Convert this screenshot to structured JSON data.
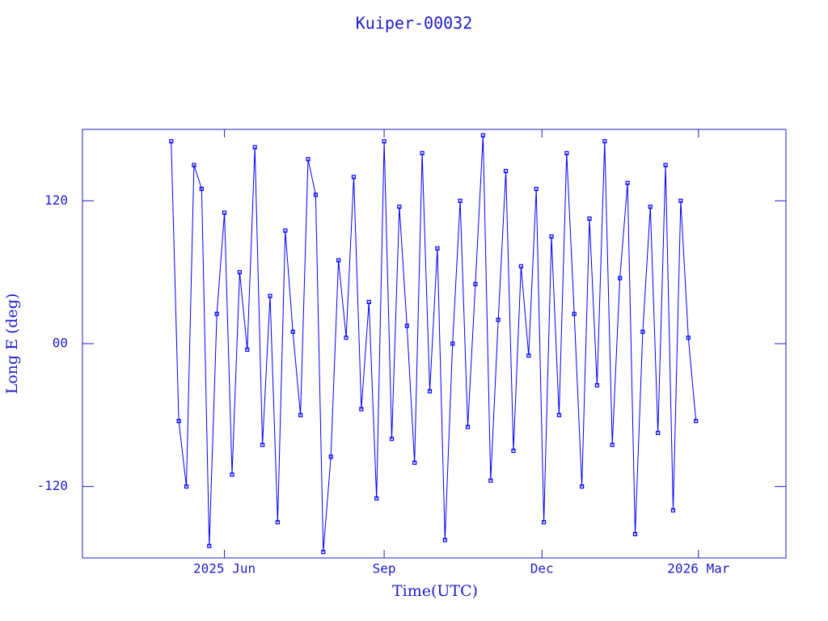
{
  "chart_data": {
    "type": "line",
    "title": "Kuiper-00032",
    "x_label": "Time(UTC)",
    "y_label": "Long E (deg)",
    "xlim": [
      2025.19,
      2026.3
    ],
    "ylim": [
      -180,
      180
    ],
    "xticks": [
      {
        "value": 2025.414,
        "label": "2025 Jun"
      },
      {
        "value": 2025.666,
        "label": "Sep"
      },
      {
        "value": 2025.915,
        "label": "Dec"
      },
      {
        "value": 2026.162,
        "label": "2026 Mar"
      }
    ],
    "yticks": [
      -120,
      {
        "value": 0,
        "label": "00"
      },
      120
    ],
    "series": [
      {
        "name": "Long E",
        "color": "#0000ff",
        "x": [
          2025.33,
          2025.342,
          2025.354,
          2025.366,
          2025.378,
          2025.39,
          2025.402,
          2025.414,
          2025.426,
          2025.438,
          2025.45,
          2025.462,
          2025.474,
          2025.486,
          2025.498,
          2025.51,
          2025.522,
          2025.534,
          2025.546,
          2025.558,
          2025.57,
          2025.582,
          2025.594,
          2025.606,
          2025.618,
          2025.63,
          2025.642,
          2025.654,
          2025.666,
          2025.678,
          2025.69,
          2025.702,
          2025.714,
          2025.726,
          2025.738,
          2025.75,
          2025.762,
          2025.774,
          2025.786,
          2025.798,
          2025.81,
          2025.822,
          2025.834,
          2025.846,
          2025.858,
          2025.87,
          2025.882,
          2025.894,
          2025.906,
          2025.918,
          2025.93,
          2025.942,
          2025.954,
          2025.966,
          2025.978,
          2025.99,
          2026.002,
          2026.014,
          2026.026,
          2026.038,
          2026.05,
          2026.062,
          2026.074,
          2026.086,
          2026.098,
          2026.11,
          2026.122,
          2026.134,
          2026.146,
          2026.158
        ],
        "values": [
          170,
          -65,
          -120,
          150,
          130,
          -170,
          25,
          110,
          -110,
          60,
          -5,
          165,
          -85,
          40,
          -150,
          95,
          10,
          -60,
          155,
          125,
          -175,
          -95,
          70,
          5,
          140,
          -55,
          35,
          -130,
          170,
          -80,
          115,
          15,
          -100,
          160,
          -40,
          80,
          -165,
          0,
          120,
          -70,
          50,
          175,
          -115,
          20,
          145,
          -90,
          65,
          -10,
          130,
          -150,
          90,
          -60,
          160,
          25,
          -120,
          105,
          -35,
          170,
          -85,
          55,
          135,
          -160,
          10,
          115,
          -75,
          150,
          -140,
          120,
          5,
          -65
        ]
      }
    ]
  }
}
